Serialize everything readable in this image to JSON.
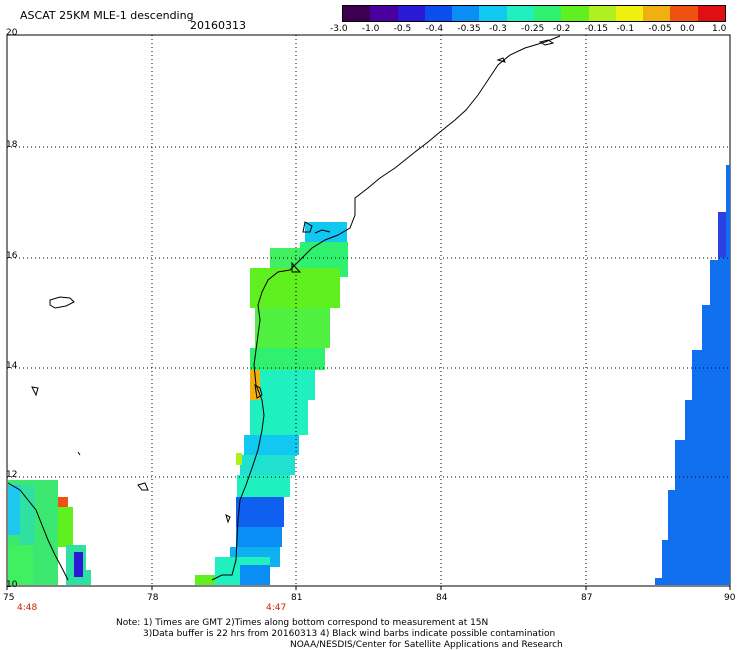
{
  "header": {
    "title": "ASCAT 25KM MLE-1 descending",
    "date": "20160313"
  },
  "colorbar": {
    "colors": [
      "#3b0050",
      "#4a00a0",
      "#2a1ad8",
      "#0a4ef0",
      "#0a8ef5",
      "#10c8f0",
      "#20f0c0",
      "#30f070",
      "#60f020",
      "#b0f020",
      "#f0f010",
      "#f0b010",
      "#f05010",
      "#e01010"
    ],
    "labels": [
      "-3.0",
      "-1.0",
      "-0.5",
      "-0.4",
      "-0.35",
      "-0.3",
      "-0.25",
      "-0.2",
      "-0.15",
      "-0.1",
      "-0.05",
      "0.0",
      "1.0"
    ]
  },
  "axes": {
    "y_labels": [
      "20",
      "18",
      "16",
      "14",
      "12",
      "10"
    ],
    "x_labels": [
      "75",
      "78",
      "81",
      "84",
      "87",
      "90"
    ],
    "xlim": [
      75,
      90
    ],
    "ylim": [
      10,
      20
    ]
  },
  "pass_times": [
    "4:48",
    "4:47"
  ],
  "notes": {
    "line1": "Note: 1) Times are GMT 2)Times along bottom correspond to measurement at 15N",
    "line2": "3)Data buffer is 22 hrs from 20160313 4) Black wind barbs indicate possible contamination",
    "line3": "NOAA/NESDIS/Center for Satellite Applications and Research"
  }
}
